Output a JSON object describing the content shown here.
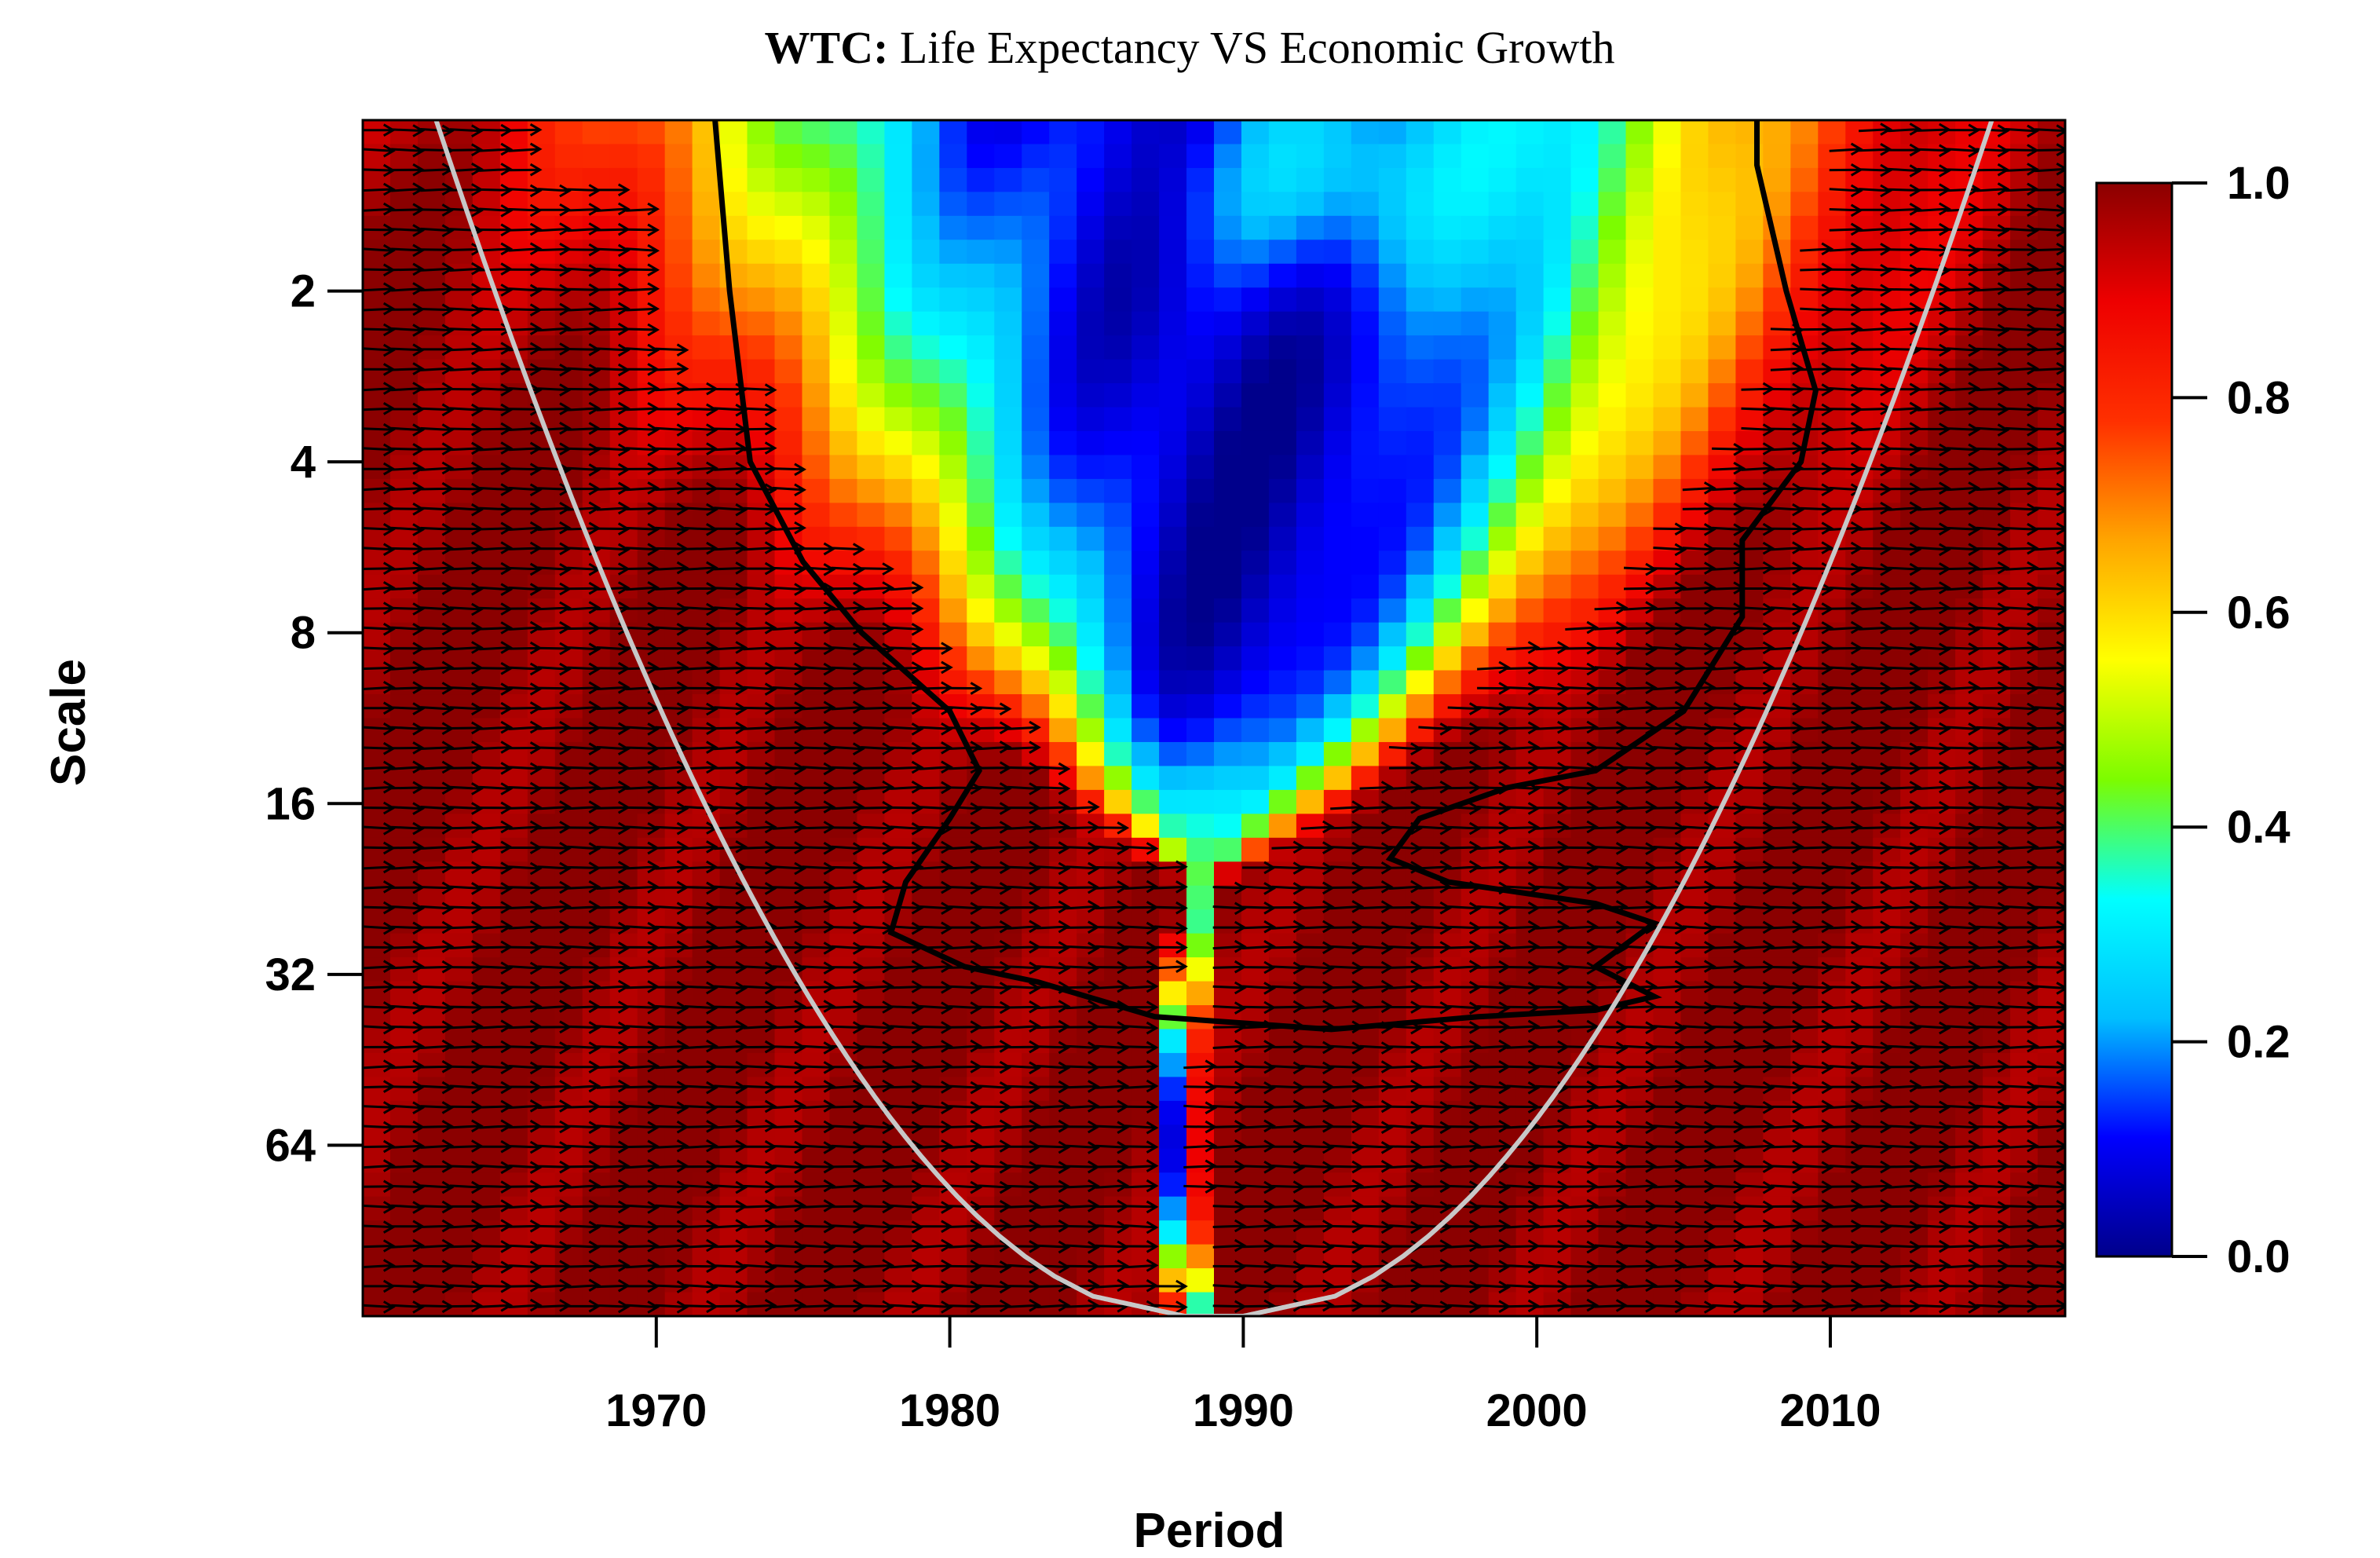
{
  "chart_data": {
    "type": "heatmap",
    "title_bold": "WTC:",
    "title_rest": " Life Expectancy VS Economic Growth",
    "xlabel": "Period",
    "ylabel": "Scale",
    "x_range": [
      1960,
      2018
    ],
    "y_scale": "log2",
    "y_range": [
      1,
      128
    ],
    "x_ticks": [
      1970,
      1980,
      1990,
      2000,
      2010
    ],
    "x_tick_labels": [
      "1970",
      "1980",
      "1990",
      "2000",
      "2010"
    ],
    "y_ticks": [
      2,
      4,
      8,
      16,
      32,
      64
    ],
    "y_tick_labels": [
      "2",
      "4",
      "8",
      "16",
      "32",
      "64"
    ],
    "colorbar": {
      "range": [
        0,
        1
      ],
      "ticks": [
        0.0,
        0.2,
        0.4,
        0.6,
        0.8,
        1.0
      ],
      "tick_labels": [
        "0.0",
        "0.2",
        "0.4",
        "0.6",
        "0.8",
        "1.0"
      ],
      "colors": [
        "#00008b",
        "#0000ff",
        "#00bfff",
        "#00ffff",
        "#7cfc00",
        "#ffff00",
        "#ffa500",
        "#ff3000",
        "#ee0000",
        "#8b0000"
      ]
    },
    "grid": false,
    "legend": "colorbar-right",
    "significance_contour": true,
    "cone_of_influence": true,
    "phase_arrows": true
  }
}
